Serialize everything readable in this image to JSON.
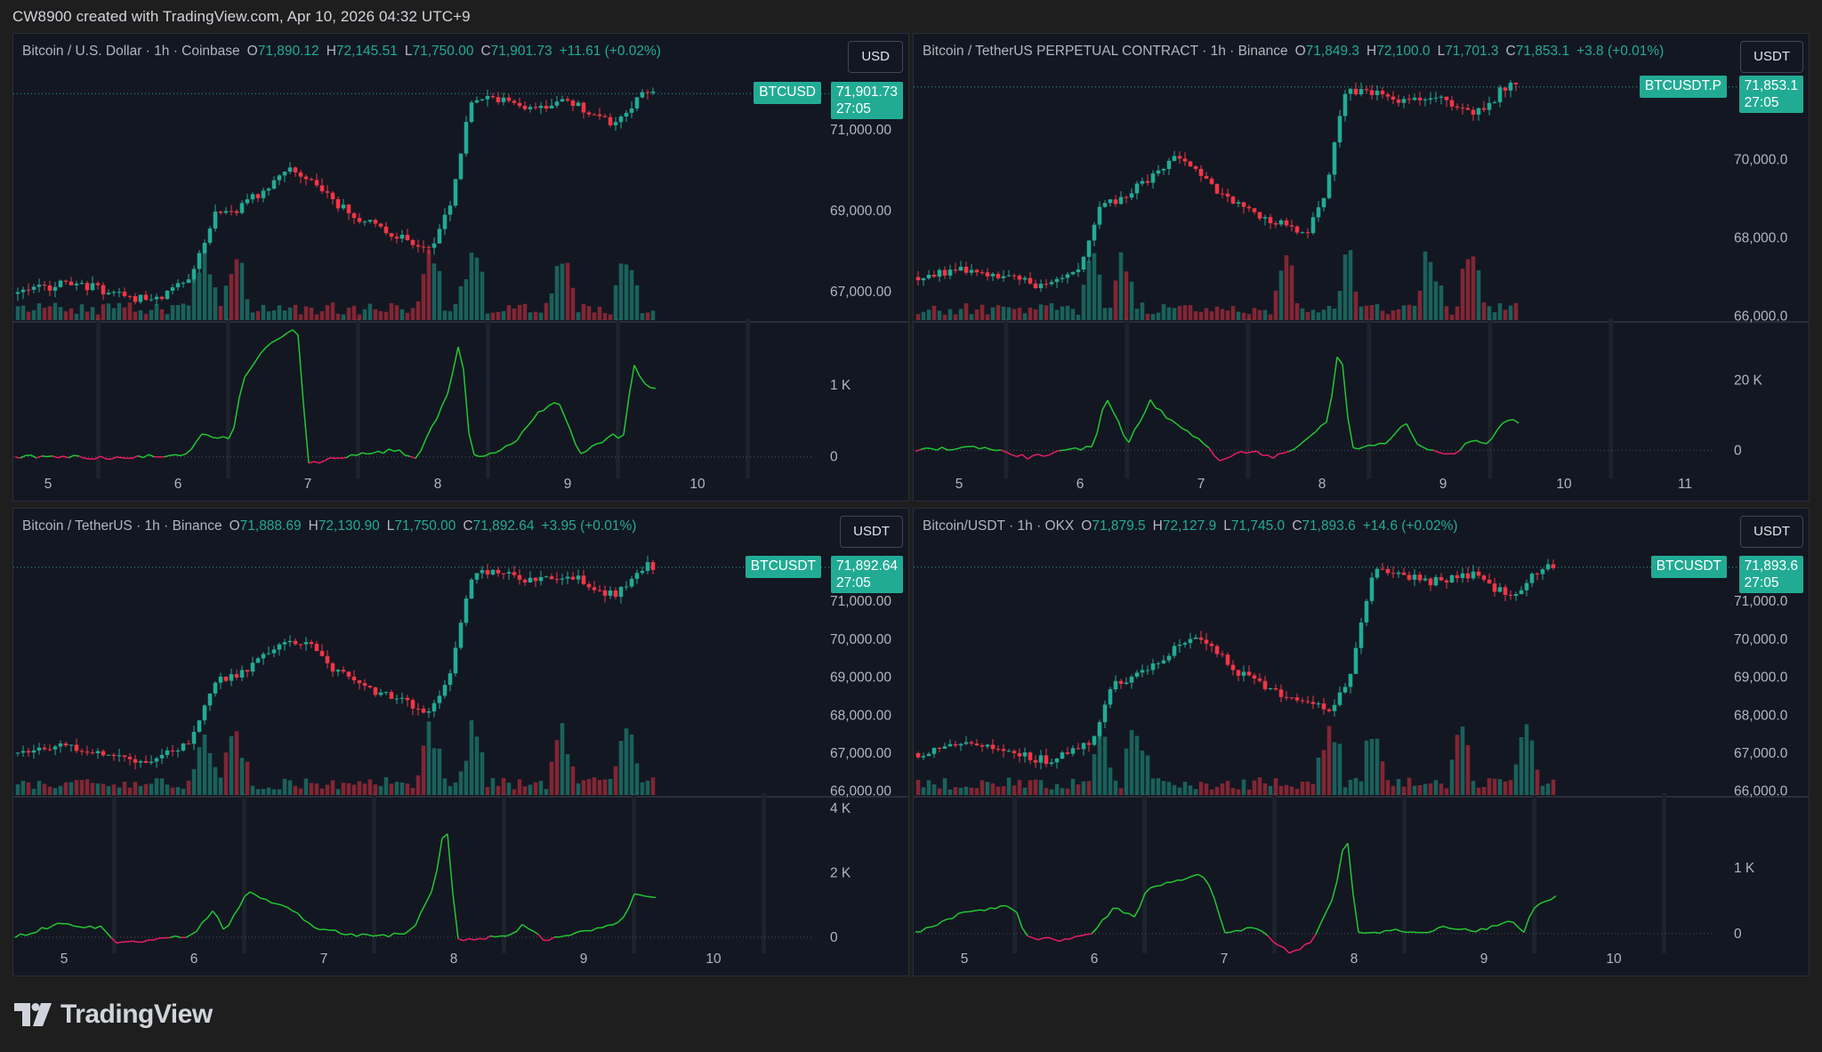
{
  "caption": "CW8900 created with TradingView.com, Apr 10, 2026 04:32 UTC+9",
  "brand": "TradingView",
  "colors": {
    "bg": "#131722",
    "up": "#22ab94",
    "down": "#f23645",
    "osc_pos": "#22c832",
    "osc_neg": "#e91e63"
  },
  "panels": [
    {
      "symbol": "Bitcoin / U.S. Dollar · 1h · Coinbase",
      "o": "71,890.12",
      "h": "72,145.51",
      "l": "71,750.00",
      "c": "71,901.73",
      "change": "+11.61 (+0.02%)",
      "currency": "USD",
      "tag_symbol": "BTCUSD",
      "tag_price": "71,901.73",
      "tag_timer": "27:05",
      "price_ticks": [
        "71,000.00",
        "69,000.00",
        "67,000.00"
      ],
      "osc_ticks": [
        "1 K",
        "0"
      ],
      "x_ticks": [
        "5",
        "6",
        "7",
        "8",
        "9",
        "10"
      ]
    },
    {
      "symbol": "Bitcoin / TetherUS PERPETUAL CONTRACT · 1h · Binance",
      "o": "71,849.3",
      "h": "72,100.0",
      "l": "71,701.3",
      "c": "71,853.1",
      "change": "+3.8 (+0.01%)",
      "currency": "USDT",
      "tag_symbol": "BTCUSDT.P",
      "tag_price": "71,853.1",
      "tag_timer": "27:05",
      "price_ticks": [
        "70,000.0",
        "68,000.0",
        "66,000.0"
      ],
      "osc_ticks": [
        "20 K",
        "0"
      ],
      "x_ticks": [
        "5",
        "6",
        "7",
        "8",
        "9",
        "10",
        "11"
      ]
    },
    {
      "symbol": "Bitcoin / TetherUS · 1h · Binance",
      "o": "71,888.69",
      "h": "72,130.90",
      "l": "71,750.00",
      "c": "71,892.64",
      "change": "+3.95 (+0.01%)",
      "currency": "USDT",
      "tag_symbol": "BTCUSDT",
      "tag_price": "71,892.64",
      "tag_timer": "27:05",
      "price_ticks": [
        "71,000.00",
        "70,000.00",
        "69,000.00",
        "68,000.00",
        "67,000.00",
        "66,000.00"
      ],
      "osc_ticks": [
        "4 K",
        "2 K",
        "0"
      ],
      "x_ticks": [
        "5",
        "6",
        "7",
        "8",
        "9",
        "10"
      ]
    },
    {
      "symbol": "Bitcoin/USDT · 1h · OKX",
      "o": "71,879.5",
      "h": "72,127.9",
      "l": "71,745.0",
      "c": "71,893.6",
      "change": "+14.6 (+0.02%)",
      "currency": "USDT",
      "tag_symbol": "BTCUSDT",
      "tag_price": "71,893.6",
      "tag_timer": "27:05",
      "price_ticks": [
        "71,000.0",
        "70,000.0",
        "69,000.0",
        "68,000.0",
        "67,000.0",
        "66,000.0"
      ],
      "osc_ticks": [
        "1 K",
        "0"
      ],
      "x_ticks": [
        "5",
        "6",
        "7",
        "8",
        "9",
        "10"
      ]
    }
  ],
  "chart_data": [
    {
      "type": "candlestick",
      "title": "Bitcoin / U.S. Dollar · 1h · Coinbase",
      "price_ylim": [
        66300,
        72500
      ],
      "osc_ylim": [
        -300,
        1800
      ],
      "x_ticks": [
        "5",
        "6",
        "7",
        "8",
        "9",
        "10"
      ],
      "price_ticks": [
        71000,
        69000,
        67000
      ],
      "osc_ticks": [
        1000,
        0
      ],
      "last_price": 71901.73,
      "close_path": [
        [
          0,
          66950
        ],
        [
          4,
          67200
        ],
        [
          7,
          67100
        ],
        [
          10,
          66900
        ],
        [
          12,
          66800
        ],
        [
          14,
          67000
        ],
        [
          16,
          67350
        ],
        [
          18,
          68900
        ],
        [
          20,
          69000
        ],
        [
          23,
          69600
        ],
        [
          25,
          70000
        ],
        [
          27,
          69800
        ],
        [
          29,
          69200
        ],
        [
          31,
          68900
        ],
        [
          33,
          68600
        ],
        [
          35,
          68400
        ],
        [
          38,
          68100
        ],
        [
          40,
          69200
        ],
        [
          41,
          70800
        ],
        [
          42,
          71800
        ],
        [
          45,
          71700
        ],
        [
          47,
          71500
        ],
        [
          49,
          71600
        ],
        [
          51,
          71700
        ],
        [
          53,
          71300
        ],
        [
          55,
          71200
        ],
        [
          56,
          71400
        ],
        [
          57,
          71800
        ],
        [
          58,
          71950
        ],
        [
          59,
          71900
        ]
      ],
      "osc_path": [
        [
          0,
          0
        ],
        [
          6,
          0
        ],
        [
          10,
          -20
        ],
        [
          16,
          50
        ],
        [
          17,
          300
        ],
        [
          20,
          250
        ],
        [
          21,
          1100
        ],
        [
          23,
          1500
        ],
        [
          26,
          1800
        ],
        [
          27,
          -100
        ],
        [
          30,
          0
        ],
        [
          33,
          50
        ],
        [
          35,
          100
        ],
        [
          37,
          -20
        ],
        [
          40,
          900
        ],
        [
          41,
          1700
        ],
        [
          42,
          0
        ],
        [
          44,
          50
        ],
        [
          46,
          200
        ],
        [
          48,
          600
        ],
        [
          50,
          800
        ],
        [
          51,
          400
        ],
        [
          52,
          50
        ],
        [
          55,
          300
        ],
        [
          56,
          250
        ],
        [
          57,
          1300
        ],
        [
          58,
          1000
        ],
        [
          59,
          950
        ]
      ],
      "vol_spikes": [
        17,
        20,
        38,
        42,
        50,
        56
      ]
    },
    {
      "type": "candlestick",
      "title": "Bitcoin / TetherUS PERPETUAL CONTRACT · 1h · Binance",
      "price_ylim": [
        65900,
        72300
      ],
      "osc_ylim": [
        -8000,
        35000
      ],
      "x_ticks": [
        "5",
        "6",
        "7",
        "8",
        "9",
        "10",
        "11"
      ],
      "price_ticks": [
        70000,
        68000,
        66000
      ],
      "osc_ticks": [
        20000,
        0
      ],
      "last_price": 71853.1,
      "close_path": [
        [
          0,
          67000
        ],
        [
          4,
          67200
        ],
        [
          7,
          67100
        ],
        [
          10,
          66900
        ],
        [
          12,
          66800
        ],
        [
          14,
          67000
        ],
        [
          16,
          67350
        ],
        [
          18,
          68900
        ],
        [
          20,
          69000
        ],
        [
          23,
          69600
        ],
        [
          25,
          70000
        ],
        [
          27,
          69800
        ],
        [
          29,
          69200
        ],
        [
          31,
          68900
        ],
        [
          33,
          68600
        ],
        [
          35,
          68400
        ],
        [
          38,
          68100
        ],
        [
          40,
          69200
        ],
        [
          41,
          70800
        ],
        [
          42,
          71800
        ],
        [
          45,
          71700
        ],
        [
          47,
          71500
        ],
        [
          49,
          71600
        ],
        [
          51,
          71700
        ],
        [
          53,
          71300
        ],
        [
          55,
          71200
        ],
        [
          56,
          71400
        ],
        [
          57,
          71800
        ],
        [
          58,
          71950
        ],
        [
          59,
          71853
        ]
      ],
      "osc_path": [
        [
          0,
          0
        ],
        [
          6,
          1000
        ],
        [
          10,
          -2000
        ],
        [
          14,
          0
        ],
        [
          16,
          1000
        ],
        [
          17,
          16000
        ],
        [
          19,
          2000
        ],
        [
          21,
          14000
        ],
        [
          23,
          8000
        ],
        [
          26,
          2000
        ],
        [
          27,
          -3000
        ],
        [
          30,
          0
        ],
        [
          32,
          -2000
        ],
        [
          34,
          0
        ],
        [
          37,
          9000
        ],
        [
          38,
          32000
        ],
        [
          39,
          500
        ],
        [
          42,
          2000
        ],
        [
          44,
          8000
        ],
        [
          45,
          1000
        ],
        [
          48,
          -1000
        ],
        [
          50,
          3000
        ],
        [
          51,
          1500
        ],
        [
          53,
          9000
        ],
        [
          54,
          8000
        ]
      ],
      "vol_spikes": [
        17,
        20,
        36,
        42,
        50,
        54
      ]
    },
    {
      "type": "candlestick",
      "title": "Bitcoin / TetherUS · 1h · Binance",
      "price_ylim": [
        65900,
        72500
      ],
      "osc_ylim": [
        -500,
        4200
      ],
      "x_ticks": [
        "5",
        "6",
        "7",
        "8",
        "9",
        "10"
      ],
      "price_ticks": [
        71000,
        70000,
        69000,
        68000,
        67000,
        66000
      ],
      "osc_ticks": [
        4000,
        2000,
        0
      ],
      "last_price": 71892.64,
      "close_path": [
        [
          0,
          67000
        ],
        [
          4,
          67200
        ],
        [
          7,
          67100
        ],
        [
          10,
          66900
        ],
        [
          12,
          66800
        ],
        [
          14,
          67000
        ],
        [
          16,
          67350
        ],
        [
          18,
          68900
        ],
        [
          20,
          69000
        ],
        [
          23,
          69600
        ],
        [
          25,
          70000
        ],
        [
          27,
          69800
        ],
        [
          29,
          69200
        ],
        [
          31,
          68900
        ],
        [
          33,
          68600
        ],
        [
          35,
          68400
        ],
        [
          38,
          68100
        ],
        [
          40,
          69200
        ],
        [
          41,
          70800
        ],
        [
          42,
          71800
        ],
        [
          45,
          71700
        ],
        [
          47,
          71500
        ],
        [
          49,
          71600
        ],
        [
          51,
          71700
        ],
        [
          53,
          71300
        ],
        [
          55,
          71200
        ],
        [
          56,
          71400
        ],
        [
          57,
          71800
        ],
        [
          58,
          71950
        ],
        [
          59,
          71892
        ]
      ],
      "osc_path": [
        [
          0,
          0
        ],
        [
          4,
          400
        ],
        [
          8,
          300
        ],
        [
          9,
          -200
        ],
        [
          12,
          -100
        ],
        [
          16,
          50
        ],
        [
          18,
          900
        ],
        [
          19,
          200
        ],
        [
          21,
          1400
        ],
        [
          23,
          1100
        ],
        [
          25,
          900
        ],
        [
          27,
          300
        ],
        [
          30,
          100
        ],
        [
          33,
          0
        ],
        [
          36,
          200
        ],
        [
          38,
          1600
        ],
        [
          39,
          3800
        ],
        [
          40,
          -100
        ],
        [
          43,
          0
        ],
        [
          45,
          100
        ],
        [
          46,
          400
        ],
        [
          48,
          -100
        ],
        [
          52,
          200
        ],
        [
          55,
          500
        ],
        [
          56,
          1300
        ],
        [
          58,
          1200
        ]
      ],
      "vol_spikes": [
        17,
        20,
        38,
        42,
        50,
        56
      ]
    },
    {
      "type": "candlestick",
      "title": "Bitcoin/USDT · 1h · OKX",
      "price_ylim": [
        65900,
        72500
      ],
      "osc_ylim": [
        -300,
        2000
      ],
      "x_ticks": [
        "5",
        "6",
        "7",
        "8",
        "9",
        "10"
      ],
      "price_ticks": [
        71000,
        70000,
        69000,
        68000,
        67000,
        66000
      ],
      "osc_ticks": [
        1000,
        0
      ],
      "last_price": 71893.6,
      "close_path": [
        [
          0,
          67000
        ],
        [
          4,
          67200
        ],
        [
          7,
          67100
        ],
        [
          10,
          66900
        ],
        [
          12,
          66800
        ],
        [
          14,
          67000
        ],
        [
          16,
          67350
        ],
        [
          18,
          68900
        ],
        [
          20,
          69000
        ],
        [
          23,
          69600
        ],
        [
          25,
          70000
        ],
        [
          27,
          69800
        ],
        [
          29,
          69200
        ],
        [
          31,
          68900
        ],
        [
          33,
          68600
        ],
        [
          35,
          68400
        ],
        [
          38,
          68100
        ],
        [
          40,
          69200
        ],
        [
          41,
          70800
        ],
        [
          42,
          71800
        ],
        [
          45,
          71700
        ],
        [
          47,
          71500
        ],
        [
          49,
          71600
        ],
        [
          51,
          71700
        ],
        [
          53,
          71300
        ],
        [
          55,
          71200
        ],
        [
          56,
          71400
        ],
        [
          57,
          71800
        ],
        [
          58,
          71950
        ],
        [
          59,
          71893
        ]
      ],
      "osc_path": [
        [
          0,
          0
        ],
        [
          4,
          300
        ],
        [
          7,
          400
        ],
        [
          9,
          400
        ],
        [
          10,
          -50
        ],
        [
          13,
          -100
        ],
        [
          16,
          0
        ],
        [
          18,
          400
        ],
        [
          20,
          250
        ],
        [
          21,
          700
        ],
        [
          24,
          800
        ],
        [
          26,
          900
        ],
        [
          27,
          600
        ],
        [
          28,
          0
        ],
        [
          31,
          100
        ],
        [
          33,
          -200
        ],
        [
          34,
          -300
        ],
        [
          36,
          -100
        ],
        [
          38,
          600
        ],
        [
          39,
          1600
        ],
        [
          40,
          0
        ],
        [
          43,
          50
        ],
        [
          46,
          0
        ],
        [
          48,
          100
        ],
        [
          51,
          50
        ],
        [
          54,
          200
        ],
        [
          55,
          0
        ],
        [
          56,
          400
        ],
        [
          58,
          550
        ]
      ],
      "vol_spikes": [
        17,
        20,
        38,
        42,
        50,
        56
      ]
    }
  ]
}
